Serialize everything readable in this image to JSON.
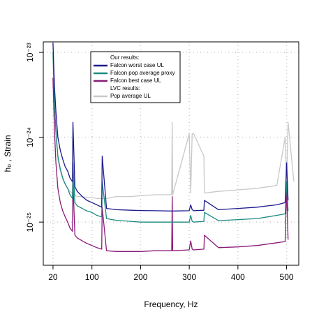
{
  "chart_data": {
    "type": "line",
    "xlabel": "Frequency, Hz",
    "ylabel": "h₀ , Strain",
    "log_y": true,
    "grid": true,
    "legend": "upper center",
    "legend_headers": [
      "Our results:",
      "LVC results:"
    ],
    "xlim": [
      0,
      525
    ],
    "xticks": [
      20,
      100,
      200,
      300,
      400,
      500
    ],
    "ylim": [
      3.1e-26,
      1.33e-23
    ],
    "yticks": [
      {
        "value": 1e-25,
        "label": "10⁻²⁵"
      },
      {
        "value": 1e-24,
        "label": "10⁻²⁴"
      },
      {
        "value": 1e-23,
        "label": "10⁻²³"
      }
    ],
    "x": [
      20,
      23,
      26,
      30,
      35,
      40,
      45,
      50,
      55,
      60,
      61,
      65,
      70,
      80,
      90,
      100,
      110,
      120,
      121,
      130,
      150,
      180,
      200,
      230,
      264,
      265,
      266,
      300,
      303,
      306,
      309,
      330,
      331,
      360,
      400,
      440,
      460,
      480,
      497,
      500,
      503,
      515
    ],
    "series": [
      {
        "name": "Falcon worst case UL",
        "color": "#1c1a8c",
        "values": [
          1.3e-23,
          4e-24,
          2e-24,
          1e-24,
          7e-25,
          5.5e-25,
          4.5e-25,
          4e-25,
          3.3e-25,
          3e-25,
          1.5e-24,
          2.6e-25,
          2.3e-25,
          2e-25,
          1.8e-25,
          1.7e-25,
          1.6e-25,
          1.5e-25,
          6e-25,
          1.45e-25,
          1.4e-25,
          1.38e-25,
          1.37e-25,
          1.36e-25,
          1.35e-25,
          1.35e-25,
          1.35e-25,
          1.36e-25,
          1.6e-25,
          1.4e-25,
          1.36e-25,
          1.38e-25,
          1.8e-25,
          1.4e-25,
          1.45e-25,
          1.5e-25,
          1.55e-25,
          1.6e-25,
          1.7e-25,
          5e-25,
          1.8e-25,
          null
        ]
      },
      {
        "name": "Falcon pop average proxy",
        "color": "#1a8a80",
        "values": [
          1e-23,
          2.5e-24,
          1.2e-24,
          6e-25,
          4.2e-25,
          3.3e-25,
          2.8e-25,
          2.5e-25,
          2.1e-25,
          1.9e-25,
          5e-25,
          1.7e-25,
          1.55e-25,
          1.45e-25,
          1.35e-25,
          1.3e-25,
          1.2e-25,
          1.15e-25,
          3e-25,
          1.1e-25,
          1.05e-25,
          1.02e-25,
          1e-25,
          1e-25,
          1e-25,
          1e-25,
          1e-25,
          1e-25,
          1.2e-25,
          1.02e-25,
          1e-25,
          1.02e-25,
          1.3e-25,
          1.04e-25,
          1.07e-25,
          1.1e-25,
          1.15e-25,
          1.2e-25,
          1.25e-25,
          3e-25,
          1.35e-25,
          null
        ]
      },
      {
        "name": "Falcon best case UL",
        "color": "#8b1a7a",
        "values": [
          5e-24,
          1.2e-24,
          5e-25,
          2.5e-25,
          1.7e-25,
          1.35e-25,
          1.15e-25,
          1e-25,
          8.5e-26,
          7.8e-26,
          3e-25,
          7e-26,
          6.5e-26,
          6e-26,
          5.6e-26,
          5.3e-26,
          5e-26,
          4.8e-26,
          1.5e-25,
          4.6e-26,
          4.5e-26,
          4.5e-26,
          4.5e-26,
          4.6e-26,
          4.6e-26,
          2e-25,
          4.6e-26,
          4.7e-26,
          6e-26,
          4.8e-26,
          4.7e-26,
          4.8e-26,
          7e-26,
          5e-26,
          5.1e-26,
          5.3e-26,
          5.5e-26,
          5.7e-26,
          5.9e-26,
          2.5e-25,
          6.2e-26,
          null
        ]
      },
      {
        "name": "Pop average UL",
        "color": "#c8c8c8",
        "values": [
          9e-24,
          2.2e-24,
          1e-24,
          5.5e-25,
          4e-25,
          3.2e-25,
          2.8e-25,
          2.5e-25,
          2.3e-25,
          2.2e-25,
          2.2e-25,
          2.1e-25,
          2e-25,
          2e-25,
          1.95e-25,
          1.95e-25,
          1.9e-25,
          1.9e-25,
          1.9e-25,
          1.9e-25,
          2e-25,
          2e-25,
          2.05e-25,
          2.1e-25,
          2.1e-25,
          1.5e-24,
          2.1e-25,
          1.1e-24,
          2.2e-25,
          1.1e-24,
          1.1e-24,
          6e-25,
          2.2e-25,
          2.3e-25,
          2.4e-25,
          2.5e-25,
          2.6e-25,
          2.7e-25,
          1e-24,
          2.8e-25,
          1.5e-24,
          3e-25
        ]
      }
    ]
  }
}
